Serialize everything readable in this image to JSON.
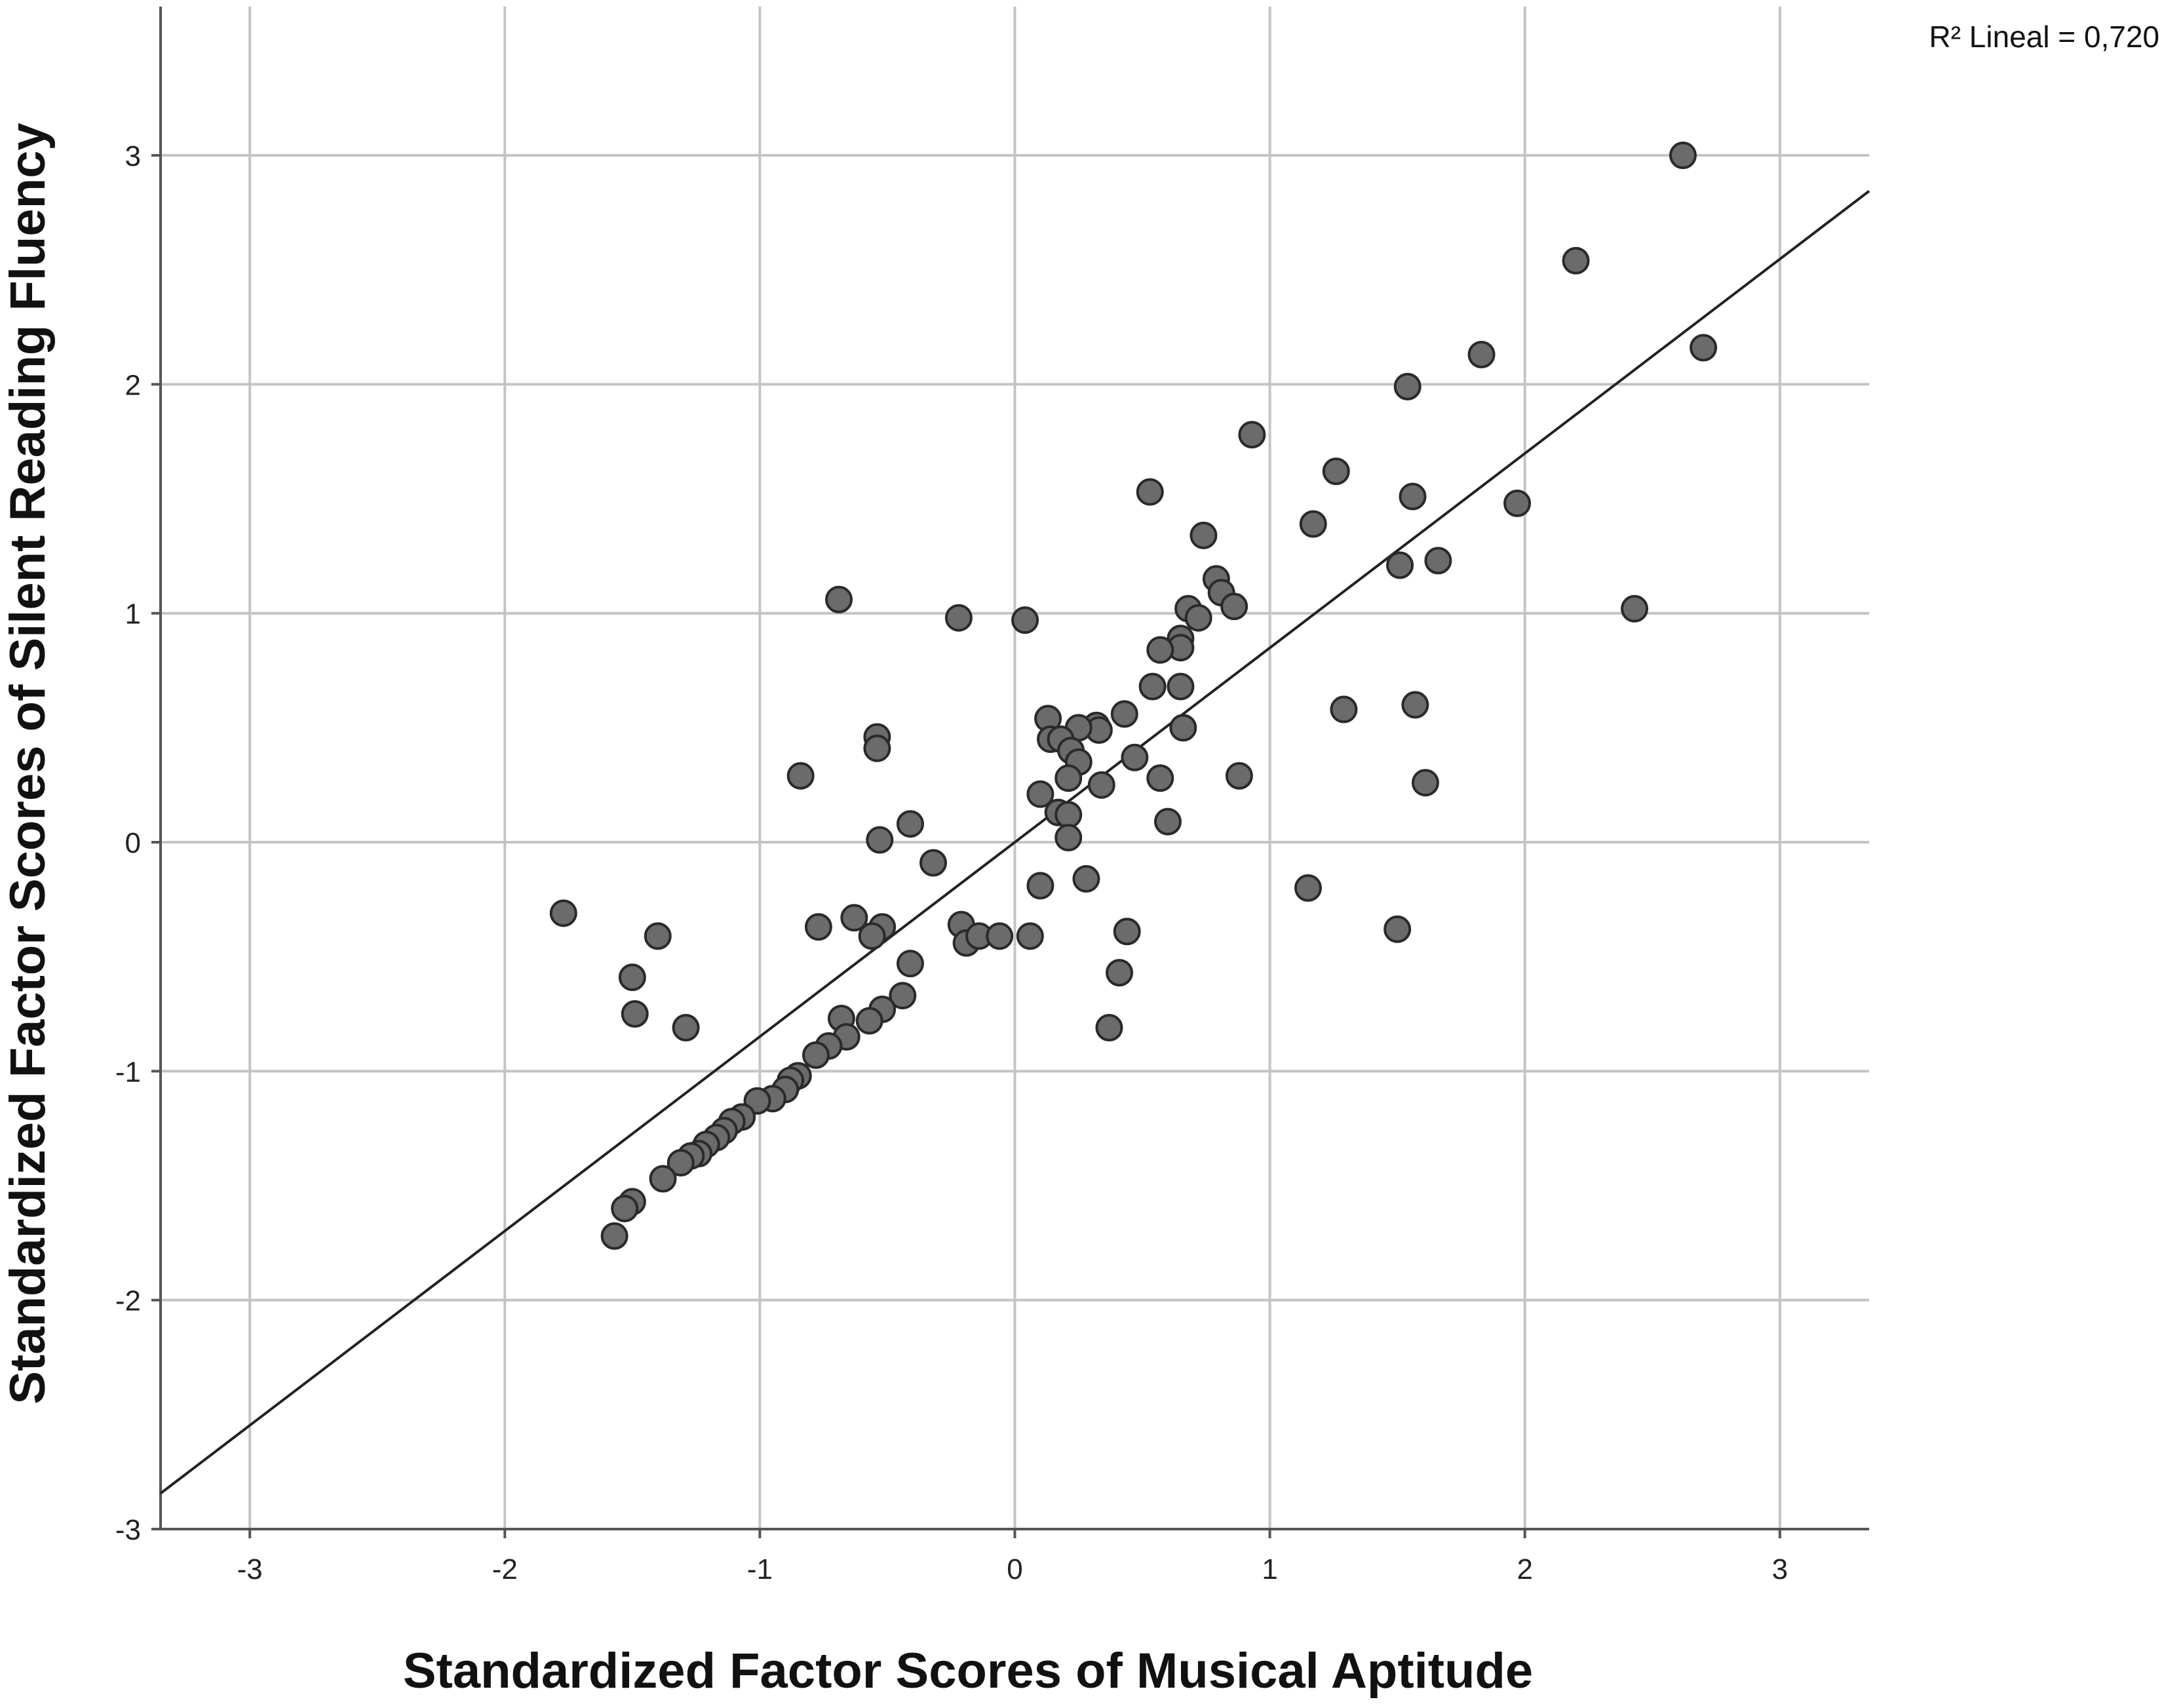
{
  "chart_data": {
    "type": "scatter",
    "xlabel": "Standardized Factor Scores of Musical Aptitude",
    "ylabel": "Standardized Factor Scores of Silent Reading Fluency",
    "xlim": [
      -3.35,
      3.35
    ],
    "ylim": [
      -3.0,
      3.65
    ],
    "x_ticks": [
      -3,
      -2,
      -1,
      0,
      1,
      2,
      3
    ],
    "y_ticks": [
      -3,
      -2,
      -1,
      0,
      1,
      2,
      3
    ],
    "grid": true,
    "fit_line": {
      "label": "R² Lineal = 0,720",
      "slope": 0.849,
      "intercept": 0.0
    },
    "points": [
      [
        2.62,
        3.0
      ],
      [
        2.2,
        2.54
      ],
      [
        2.7,
        2.16
      ],
      [
        1.83,
        2.13
      ],
      [
        1.54,
        1.99
      ],
      [
        0.93,
        1.78
      ],
      [
        1.26,
        1.62
      ],
      [
        1.56,
        1.51
      ],
      [
        1.97,
        1.48
      ],
      [
        0.53,
        1.53
      ],
      [
        1.17,
        1.39
      ],
      [
        0.74,
        1.34
      ],
      [
        1.66,
        1.23
      ],
      [
        1.51,
        1.21
      ],
      [
        0.79,
        1.15
      ],
      [
        0.81,
        1.09
      ],
      [
        0.86,
        1.03
      ],
      [
        0.68,
        1.02
      ],
      [
        0.72,
        0.98
      ],
      [
        2.43,
        1.02
      ],
      [
        -0.69,
        1.06
      ],
      [
        -0.22,
        0.98
      ],
      [
        0.04,
        0.97
      ],
      [
        0.65,
        0.89
      ],
      [
        0.65,
        0.85
      ],
      [
        0.57,
        0.84
      ],
      [
        0.54,
        0.68
      ],
      [
        0.65,
        0.68
      ],
      [
        0.66,
        0.5
      ],
      [
        1.57,
        0.6
      ],
      [
        1.29,
        0.58
      ],
      [
        0.43,
        0.56
      ],
      [
        0.13,
        0.54
      ],
      [
        0.32,
        0.51
      ],
      [
        0.33,
        0.49
      ],
      [
        0.25,
        0.5
      ],
      [
        0.14,
        0.45
      ],
      [
        0.18,
        0.45
      ],
      [
        0.22,
        0.4
      ],
      [
        -0.54,
        0.46
      ],
      [
        -0.54,
        0.41
      ],
      [
        0.25,
        0.35
      ],
      [
        0.47,
        0.37
      ],
      [
        0.57,
        0.28
      ],
      [
        0.88,
        0.29
      ],
      [
        1.61,
        0.26
      ],
      [
        0.34,
        0.25
      ],
      [
        -0.84,
        0.29
      ],
      [
        0.21,
        0.28
      ],
      [
        0.1,
        0.21
      ],
      [
        0.17,
        0.13
      ],
      [
        0.21,
        0.12
      ],
      [
        0.6,
        0.09
      ],
      [
        -0.41,
        0.08
      ],
      [
        0.21,
        0.02
      ],
      [
        -0.53,
        0.01
      ],
      [
        -0.32,
        -0.09
      ],
      [
        0.28,
        -0.16
      ],
      [
        0.1,
        -0.19
      ],
      [
        1.15,
        -0.2
      ],
      [
        -1.77,
        -0.31
      ],
      [
        -0.63,
        -0.33
      ],
      [
        -0.77,
        -0.37
      ],
      [
        -0.52,
        -0.37
      ],
      [
        -0.21,
        -0.36
      ],
      [
        1.5,
        -0.38
      ],
      [
        -0.56,
        -0.41
      ],
      [
        -1.4,
        -0.41
      ],
      [
        -0.19,
        -0.44
      ],
      [
        -0.14,
        -0.41
      ],
      [
        -0.06,
        -0.41
      ],
      [
        0.06,
        -0.41
      ],
      [
        0.44,
        -0.39
      ],
      [
        -0.41,
        -0.53
      ],
      [
        -1.5,
        -0.59
      ],
      [
        0.41,
        -0.57
      ],
      [
        -0.44,
        -0.67
      ],
      [
        -1.49,
        -0.75
      ],
      [
        -0.52,
        -0.73
      ],
      [
        -0.57,
        -0.78
      ],
      [
        -0.68,
        -0.77
      ],
      [
        -1.29,
        -0.81
      ],
      [
        0.37,
        -0.81
      ],
      [
        -0.66,
        -0.85
      ],
      [
        -0.73,
        -0.89
      ],
      [
        -0.78,
        -0.93
      ],
      [
        -0.85,
        -1.02
      ],
      [
        -0.88,
        -1.04
      ],
      [
        -0.9,
        -1.08
      ],
      [
        -0.95,
        -1.12
      ],
      [
        -1.01,
        -1.13
      ],
      [
        -1.07,
        -1.2
      ],
      [
        -1.11,
        -1.22
      ],
      [
        -1.14,
        -1.26
      ],
      [
        -1.17,
        -1.29
      ],
      [
        -1.21,
        -1.32
      ],
      [
        -1.24,
        -1.36
      ],
      [
        -1.27,
        -1.37
      ],
      [
        -1.31,
        -1.4
      ],
      [
        -1.38,
        -1.47
      ],
      [
        -1.5,
        -1.57
      ],
      [
        -1.53,
        -1.6
      ],
      [
        -1.57,
        -1.72
      ]
    ]
  }
}
